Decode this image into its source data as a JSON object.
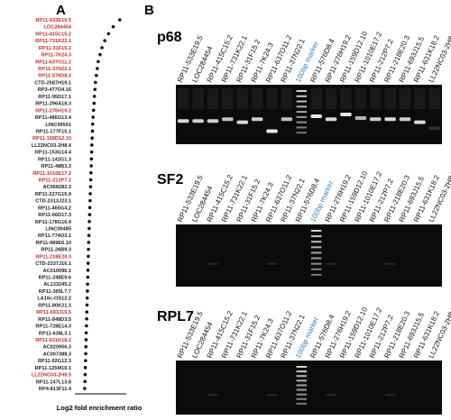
{
  "chart_data": {
    "type": "dot",
    "panel_label": "A",
    "x_label": "Log2 fold enrichment ratio",
    "categories": [
      "RP11-533E19.5",
      "LOC284454",
      "RP11-415C15.2",
      "RP11-731K22.1",
      "RP11-31F15.2",
      "RP11-7K24.3",
      "RP11-637O11.2",
      "RP11-37N22.1",
      "RP11-576D8.4",
      "CTD-2587H19.1",
      "RP3-477O4.16",
      "RP11-95D17.1",
      "RP11-296A18.3",
      "RP11-276H19.2",
      "RP11-486O13.4",
      "LINC00501",
      "RP11-177F15.1",
      "RP11-159D12.10",
      "LL22NC03-2H8.4",
      "RP11-153G14.4",
      "RP11-142G1.3",
      "RP11-48B3.3",
      "RP11-1010E17.2",
      "RP11-212P7.2",
      "AC068282.3",
      "RP11-227G15.9",
      "CTD-2313J23.1",
      "RP11-465G4.2",
      "RP11-66D17.3",
      "RP11-178G16.4",
      "LINC00485",
      "RP11-774O3.1",
      "RP11-989E6.10",
      "RP11-26B9.3",
      "RP11-218E20.3",
      "CTD-2337J16.1",
      "AC010096.1",
      "RP11-248E9.6",
      "AL133245.2",
      "RP11-305L7.7",
      "LA16c-OS12.2",
      "RP11-80K21.3",
      "RP11-693J15.5",
      "RP11-848D3.5",
      "RP11-728E14.3",
      "RP11-638L3.1",
      "RP11-631K18.2",
      "AC020956.3",
      "AC007388.3",
      "RP11-92G12.3",
      "RP11-125M16.1",
      "LL22NC03-2H8.5",
      "RP11-147L13.8",
      "RP4-813F11.4"
    ],
    "category_colors": [
      "#c62a2f",
      "#c62a2f",
      "#c62a2f",
      "#c62a2f",
      "#c62a2f",
      "#c62a2f",
      "#c62a2f",
      "#c62a2f",
      "#c62a2f",
      "#222222",
      "#222222",
      "#222222",
      "#222222",
      "#c62a2f",
      "#222222",
      "#222222",
      "#222222",
      "#c62a2f",
      "#222222",
      "#222222",
      "#222222",
      "#222222",
      "#c62a2f",
      "#c62a2f",
      "#222222",
      "#222222",
      "#222222",
      "#222222",
      "#222222",
      "#222222",
      "#222222",
      "#222222",
      "#222222",
      "#222222",
      "#c62a2f",
      "#222222",
      "#222222",
      "#222222",
      "#222222",
      "#222222",
      "#222222",
      "#222222",
      "#c62a2f",
      "#222222",
      "#222222",
      "#222222",
      "#c62a2f",
      "#222222",
      "#222222",
      "#222222",
      "#222222",
      "#c62a2f",
      "#222222",
      "#222222"
    ],
    "values": [
      8.3,
      7.6,
      7.1,
      6.7,
      6.4,
      6.2,
      6.0,
      5.9,
      5.8,
      5.7,
      5.65,
      5.6,
      5.55,
      5.5,
      5.45,
      5.4,
      5.38,
      5.35,
      5.32,
      5.3,
      5.27,
      5.25,
      5.22,
      5.2,
      5.18,
      5.15,
      5.13,
      5.1,
      5.08,
      5.05,
      5.03,
      5.0,
      4.98,
      4.96,
      4.94,
      4.92,
      4.9,
      4.88,
      4.86,
      4.84,
      4.82,
      4.8,
      4.78,
      4.76,
      4.74,
      4.72,
      4.7,
      4.68,
      4.66,
      4.64,
      4.62,
      4.6,
      4.58,
      4.55
    ],
    "color": "#111111",
    "xlim": [
      3.5,
      9
    ]
  },
  "panel_b": {
    "label": "B",
    "marker_color": "#2f7fc1",
    "gels": [
      {
        "title": "p68",
        "lanes": [
          "RP11-533E19.5",
          "LOC284454",
          "RP11-415C15.2",
          "RP11-731K22.1",
          "RP11-31F15.2",
          "RP11-7K24.3",
          "RP11-637O11.2",
          "RP11-37N22.1",
          "100bp marker",
          "RP11-576D8.4",
          "RP11-276H19.2",
          "RP11-159D12.10",
          "RP11-1010E17.2",
          "RP11-212P7.2",
          "RP11-218E20.3",
          "RP11-693J15.5",
          "RP11-631K18.2",
          "LL22NC03-2H8.5"
        ]
      },
      {
        "title": "SF2",
        "lanes": [
          "RP11-533E19.5",
          "LOC284454",
          "RP11-415C15.2",
          "RP11-731K22.1",
          "RP11-31F15.2",
          "RP11-7K24.3",
          "RP11-637O11.2",
          "RP11-37N22.1",
          "RP11-576D8.4",
          "100bp marker",
          "RP11-276H19.2",
          "RP11-159D12.10",
          "RP11-1010E17.2",
          "RP11-212P7.2",
          "RP11-218E20.3",
          "RP11-693J15.5",
          "RP11-631K18.2",
          "LL22NC03-2H8.5"
        ]
      },
      {
        "title": "RPL7",
        "lanes": [
          "RP11-533E19.5",
          "LOC284454",
          "RP11-415C15.2",
          "RP11-731K22.1",
          "RP11-31F15.2",
          "RP11-7K24.3",
          "RP11-637O11.2",
          "RP11-37N22.1",
          "100bp marker",
          "RP11-576D8.4",
          "RP11-276H19.2",
          "RP11-159D12.10",
          "RP11-1010E17.2",
          "RP11-212P7.2",
          "RP11-218E20.3",
          "RP11-693J15.5",
          "RP11-631K18.2",
          "LL22NC03-2H8.5"
        ]
      }
    ]
  }
}
